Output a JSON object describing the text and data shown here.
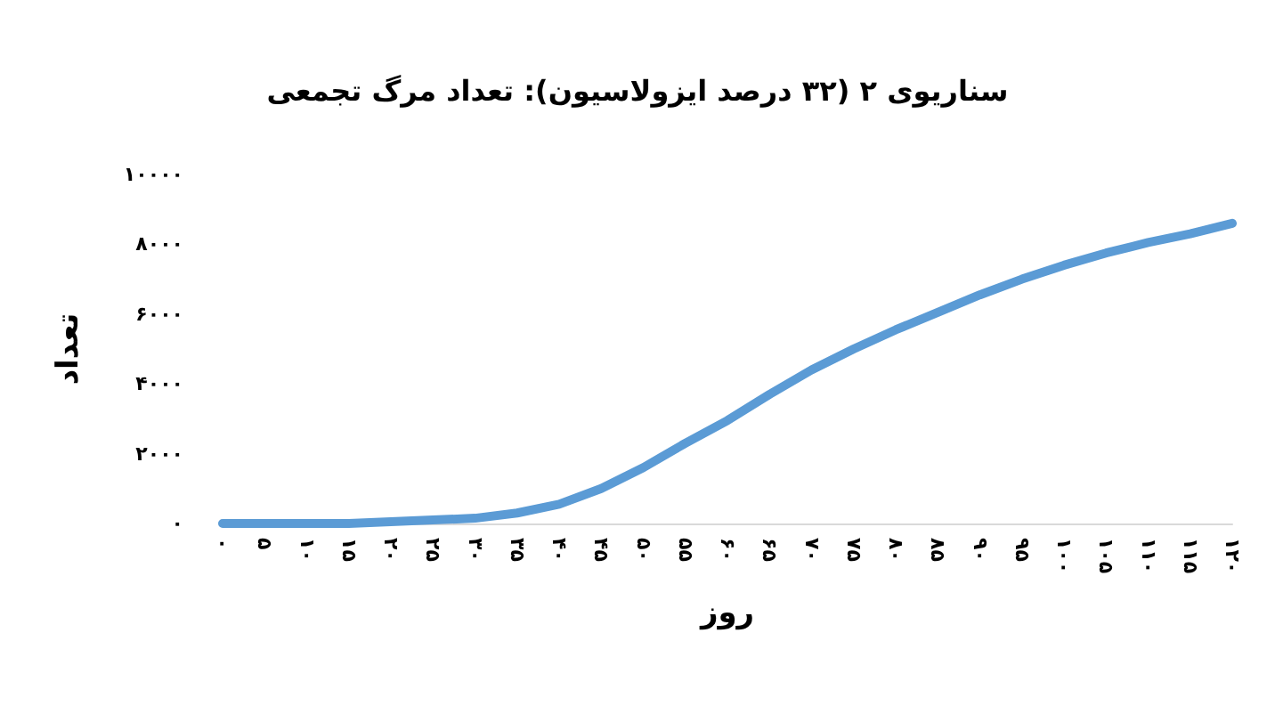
{
  "chart_data": {
    "type": "line",
    "title": "سناریوی ۲ (۳۲ درصد ایزولاسیون): تعداد مرگ تجمعی",
    "xlabel": "روز",
    "ylabel": "تعداد",
    "categories": [
      "۰",
      "۵",
      "۱۰",
      "۱۵",
      "۲۰",
      "۲۵",
      "۳۰",
      "۳۵",
      "۴۰",
      "۴۵",
      "۵۰",
      "۵۵",
      "۶۰",
      "۶۵",
      "۷۰",
      "۷۵",
      "۸۰",
      "۸۵",
      "۹۰",
      "۹۵",
      "۱۰۰",
      "۱۰۵",
      "۱۱۰",
      "۱۱۵",
      "۱۲۰"
    ],
    "series": [
      {
        "color": "#5b9bd5",
        "values": [
          0,
          0,
          0,
          0,
          50,
          100,
          150,
          300,
          550,
          1000,
          1600,
          2300,
          2950,
          3700,
          4400,
          5000,
          5550,
          6050,
          6550,
          7000,
          7400,
          7750,
          8050,
          8300,
          8600
        ]
      }
    ],
    "ylim": [
      0,
      10000
    ],
    "yticks": [
      {
        "value": 0,
        "label": "۰"
      },
      {
        "value": 2000,
        "label": "۲۰۰۰"
      },
      {
        "value": 4000,
        "label": "۴۰۰۰"
      },
      {
        "value": 6000,
        "label": "۶۰۰۰"
      },
      {
        "value": 8000,
        "label": "۸۰۰۰"
      },
      {
        "value": 10000,
        "label": "۱۰۰۰۰"
      }
    ],
    "grid": false,
    "marker": "none",
    "line_style": "solid"
  }
}
